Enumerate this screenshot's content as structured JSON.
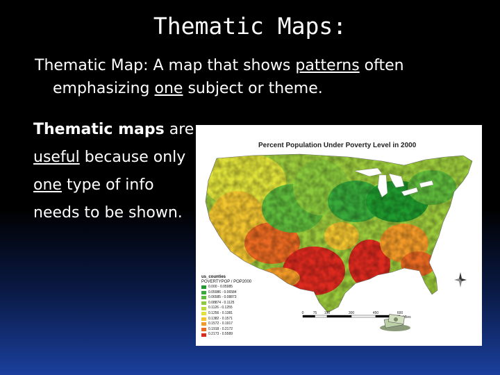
{
  "slide": {
    "title": "Thematic Maps:",
    "definition": {
      "pre": "Thematic Map: A map that shows ",
      "underlined1": "patterns",
      "mid": " often",
      "line2_pre": "emphasizing ",
      "underlined2": "one",
      "line2_post": " subject or theme."
    },
    "side_text": {
      "bold": "Thematic maps",
      "after_bold": " are",
      "u1": "useful",
      "after_u1": " because only",
      "u2": "one",
      "after_u2": " type of info",
      "line4": "needs to be shown."
    }
  },
  "map": {
    "title": "Percent Population Under Poverty Level in 2000",
    "legend_title": "us_counties",
    "legend_subtitle": "POVERTYPOP / POP2000",
    "legend_items": [
      {
        "label": "0.000 - 0.05985",
        "color": "#1f9a2e"
      },
      {
        "label": "0.05986 - 0.06584",
        "color": "#38a93a"
      },
      {
        "label": "0.06585 - 0.08873",
        "color": "#5fbb3c"
      },
      {
        "label": "0.08874 - 0.1125",
        "color": "#8ccb3d"
      },
      {
        "label": "0.1126 - 0.1255",
        "color": "#bcd93c"
      },
      {
        "label": "0.1256 - 0.1381",
        "color": "#e4e23a"
      },
      {
        "label": "0.1382 - 0.1571",
        "color": "#f2c530"
      },
      {
        "label": "0.1572 - 0.1917",
        "color": "#f29a28"
      },
      {
        "label": "0.1918 - 0.2172",
        "color": "#ea6a22"
      },
      {
        "label": "0.2173 - 0.5589",
        "color": "#dd2a1f"
      }
    ],
    "scale_ticks": [
      "0",
      "75",
      "150",
      "300",
      "450",
      "600"
    ],
    "scale_unit": "Miles"
  }
}
